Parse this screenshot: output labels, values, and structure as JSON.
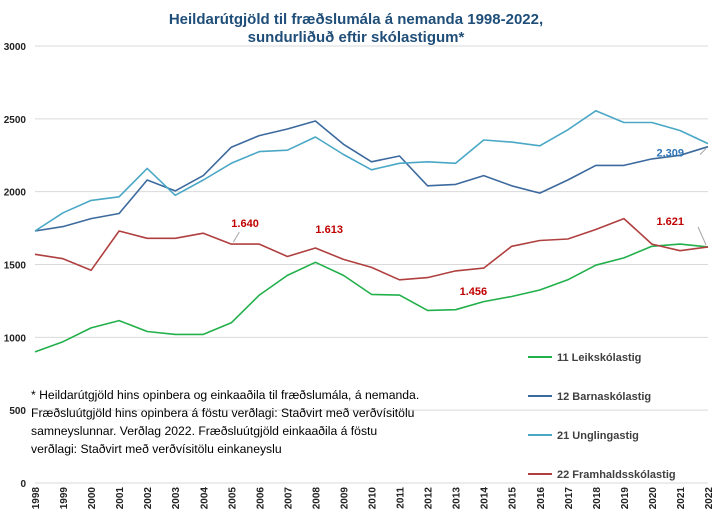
{
  "chart_data": {
    "type": "line",
    "title": [
      "Heildarútgjöld til fræðslumála á nemanda 1998-2022,",
      "sundurliðuð eftir skólastigum*"
    ],
    "xlabel": "",
    "ylabel": "",
    "x": [
      "1998",
      "1999",
      "2000",
      "2001",
      "2002",
      "2003",
      "2004",
      "2005",
      "2006",
      "2007",
      "2008",
      "2009",
      "2010",
      "2011",
      "2012",
      "2013",
      "2014",
      "2015",
      "2016",
      "2017",
      "2018",
      "2019",
      "2020",
      "2021",
      "2022"
    ],
    "ylim": [
      0,
      3000
    ],
    "yticks": [
      "0",
      "500",
      "1000",
      "1500",
      "2000",
      "2500",
      "3000"
    ],
    "grid": true,
    "legend_position": "right",
    "series": [
      {
        "name": "11 Leikskólastig",
        "color": "#22b04b",
        "values": [
          900,
          970,
          1065,
          1115,
          1040,
          1020,
          1020,
          1100,
          1290,
          1425,
          1515,
          1425,
          1295,
          1290,
          1185,
          1190,
          1245,
          1280,
          1325,
          1395,
          1495,
          1545,
          1625,
          1640,
          1621
        ]
      },
      {
        "name": "12 Barnaskólastig",
        "color": "#3c6a9e",
        "values": [
          1730,
          1760,
          1815,
          1850,
          2080,
          2005,
          2110,
          2305,
          2385,
          2430,
          2485,
          2325,
          2205,
          2245,
          2040,
          2050,
          2110,
          2040,
          1990,
          2080,
          2180,
          2180,
          2225,
          2250,
          2309
        ]
      },
      {
        "name": "21 Unglingastig",
        "color": "#4aa8c6",
        "values": [
          1730,
          1855,
          1940,
          1965,
          2160,
          1975,
          2080,
          2195,
          2275,
          2285,
          2375,
          2255,
          2150,
          2195,
          2205,
          2195,
          2355,
          2340,
          2315,
          2425,
          2555,
          2475,
          2475,
          2420,
          2330
        ]
      },
      {
        "name": "22 Framhaldsskólastig",
        "color": "#b04040",
        "values": [
          1570,
          1540,
          1460,
          1730,
          1680,
          1680,
          1715,
          1640,
          1640,
          1555,
          1613,
          1535,
          1480,
          1395,
          1410,
          1456,
          1475,
          1625,
          1665,
          1675,
          1740,
          1815,
          1640,
          1595,
          1621
        ]
      }
    ],
    "annotations": [
      {
        "text": "1.640",
        "x": "2005",
        "series": 3
      },
      {
        "text": "1.613",
        "x": "2008",
        "series": 3
      },
      {
        "text": "1.456",
        "x": "2013",
        "series": 3
      },
      {
        "text": "1.621",
        "x": "2022",
        "series": 3
      },
      {
        "text": "2.309",
        "x": "2022",
        "series": 1
      }
    ],
    "note": "* Heildarútgjöld hins opinbera og einkaaðila til fræðslumála, á nemanda. Fræðsluútgjöld hins opinbera á föstu verðlagi: Staðvirt með verðvísitölu samneyslunnar. Verðlag 2022. Fræðsluútgjöld einkaaðila á föstu verðlagi: Staðvirt með verðvísitölu einkaneyslu"
  }
}
